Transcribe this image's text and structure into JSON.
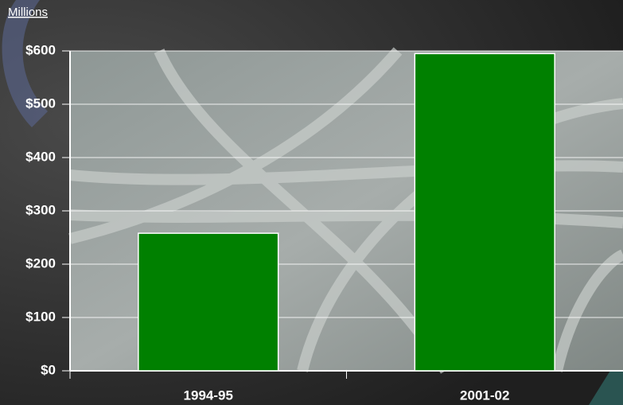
{
  "chart_data": {
    "type": "bar",
    "y_axis_label": "Millions",
    "categories": [
      "1994-95",
      "2001-02"
    ],
    "values": [
      258,
      595
    ],
    "color": "#008000",
    "ylim": [
      0,
      600
    ],
    "yticks": [
      {
        "value": 0,
        "label": "$0"
      },
      {
        "value": 100,
        "label": "$100"
      },
      {
        "value": 200,
        "label": "$200"
      },
      {
        "value": 300,
        "label": "$300"
      },
      {
        "value": 400,
        "label": "$400"
      },
      {
        "value": 500,
        "label": "$500"
      },
      {
        "value": 600,
        "label": "$600"
      }
    ],
    "grid": true
  }
}
